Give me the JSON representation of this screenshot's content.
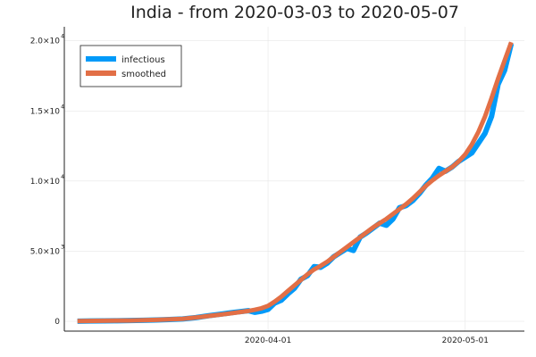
{
  "chart_data": {
    "type": "line",
    "title": "India - from 2020-03-03 to 2020-05-07",
    "xlabel": "",
    "ylabel": "",
    "x_start": "2020-03-03",
    "x_end": "2020-05-07",
    "ylim": [
      -700,
      21000
    ],
    "x_ticks": [
      {
        "date": "2020-04-01",
        "label": "2020-04-01"
      },
      {
        "date": "2020-05-01",
        "label": "2020-05-01"
      }
    ],
    "y_ticks": [
      {
        "value": 0,
        "mantissa": "0",
        "exponent": ""
      },
      {
        "value": 5000,
        "mantissa": "5.0×10",
        "exponent": "3"
      },
      {
        "value": 10000,
        "mantissa": "1.0×10",
        "exponent": "4"
      },
      {
        "value": 15000,
        "mantissa": "1.5×10",
        "exponent": "4"
      },
      {
        "value": 20000,
        "mantissa": "2.0×10",
        "exponent": "4"
      }
    ],
    "grid": true,
    "legend_position": "top-left",
    "series": [
      {
        "name": "infectious",
        "color": "#009af9",
        "points": [
          [
            "2020-03-03",
            5
          ],
          [
            "2020-03-05",
            25
          ],
          [
            "2020-03-07",
            30
          ],
          [
            "2020-03-09",
            40
          ],
          [
            "2020-03-11",
            55
          ],
          [
            "2020-03-13",
            70
          ],
          [
            "2020-03-15",
            95
          ],
          [
            "2020-03-17",
            125
          ],
          [
            "2020-03-19",
            165
          ],
          [
            "2020-03-21",
            260
          ],
          [
            "2020-03-23",
            400
          ],
          [
            "2020-03-25",
            520
          ],
          [
            "2020-03-27",
            650
          ],
          [
            "2020-03-29",
            760
          ],
          [
            "2020-03-30",
            640
          ],
          [
            "2020-03-31",
            720
          ],
          [
            "2020-04-01",
            850
          ],
          [
            "2020-04-02",
            1300
          ],
          [
            "2020-04-03",
            1500
          ],
          [
            "2020-04-04",
            1950
          ],
          [
            "2020-04-05",
            2350
          ],
          [
            "2020-04-06",
            3000
          ],
          [
            "2020-04-07",
            3250
          ],
          [
            "2020-04-08",
            3900
          ],
          [
            "2020-04-09",
            3850
          ],
          [
            "2020-04-10",
            4150
          ],
          [
            "2020-04-11",
            4600
          ],
          [
            "2020-04-12",
            4900
          ],
          [
            "2020-04-13",
            5200
          ],
          [
            "2020-04-14",
            5050
          ],
          [
            "2020-04-15",
            6000
          ],
          [
            "2020-04-16",
            6300
          ],
          [
            "2020-04-17",
            6650
          ],
          [
            "2020-04-18",
            7000
          ],
          [
            "2020-04-19",
            6850
          ],
          [
            "2020-04-20",
            7300
          ],
          [
            "2020-04-21",
            8100
          ],
          [
            "2020-04-22",
            8250
          ],
          [
            "2020-04-23",
            8600
          ],
          [
            "2020-04-24",
            9100
          ],
          [
            "2020-04-25",
            9700
          ],
          [
            "2020-04-26",
            10200
          ],
          [
            "2020-04-27",
            10900
          ],
          [
            "2020-04-28",
            10700
          ],
          [
            "2020-04-29",
            11000
          ],
          [
            "2020-04-30",
            11400
          ],
          [
            "2020-05-01",
            11700
          ],
          [
            "2020-05-02",
            12000
          ],
          [
            "2020-05-03",
            12700
          ],
          [
            "2020-05-04",
            13400
          ],
          [
            "2020-05-05",
            14600
          ],
          [
            "2020-05-06",
            16900
          ],
          [
            "2020-05-07",
            17900
          ],
          [
            "2020-05-08",
            19800
          ]
        ]
      },
      {
        "name": "smoothed",
        "color": "#e26f46",
        "points": [
          [
            "2020-03-03",
            10
          ],
          [
            "2020-03-07",
            35
          ],
          [
            "2020-03-11",
            60
          ],
          [
            "2020-03-15",
            100
          ],
          [
            "2020-03-19",
            180
          ],
          [
            "2020-03-21",
            270
          ],
          [
            "2020-03-23",
            380
          ],
          [
            "2020-03-25",
            490
          ],
          [
            "2020-03-27",
            610
          ],
          [
            "2020-03-29",
            740
          ],
          [
            "2020-03-30",
            820
          ],
          [
            "2020-03-31",
            930
          ],
          [
            "2020-04-01",
            1100
          ],
          [
            "2020-04-02",
            1400
          ],
          [
            "2020-04-03",
            1750
          ],
          [
            "2020-04-04",
            2150
          ],
          [
            "2020-04-05",
            2550
          ],
          [
            "2020-04-06",
            2950
          ],
          [
            "2020-04-07",
            3350
          ],
          [
            "2020-04-08",
            3700
          ],
          [
            "2020-04-09",
            3950
          ],
          [
            "2020-04-10",
            4250
          ],
          [
            "2020-04-11",
            4600
          ],
          [
            "2020-04-12",
            4950
          ],
          [
            "2020-04-13",
            5300
          ],
          [
            "2020-04-14",
            5650
          ],
          [
            "2020-04-15",
            6000
          ],
          [
            "2020-04-16",
            6350
          ],
          [
            "2020-04-17",
            6700
          ],
          [
            "2020-04-18",
            7000
          ],
          [
            "2020-04-19",
            7300
          ],
          [
            "2020-04-20",
            7650
          ],
          [
            "2020-04-21",
            8000
          ],
          [
            "2020-04-22",
            8350
          ],
          [
            "2020-04-23",
            8750
          ],
          [
            "2020-04-24",
            9200
          ],
          [
            "2020-04-25",
            9650
          ],
          [
            "2020-04-26",
            10050
          ],
          [
            "2020-04-27",
            10400
          ],
          [
            "2020-04-28",
            10700
          ],
          [
            "2020-04-29",
            11000
          ],
          [
            "2020-04-30",
            11400
          ],
          [
            "2020-05-01",
            11900
          ],
          [
            "2020-05-02",
            12600
          ],
          [
            "2020-05-03",
            13500
          ],
          [
            "2020-05-04",
            14600
          ],
          [
            "2020-05-05",
            15900
          ],
          [
            "2020-05-06",
            17300
          ],
          [
            "2020-05-07",
            18600
          ],
          [
            "2020-05-08",
            19900
          ]
        ]
      }
    ]
  }
}
